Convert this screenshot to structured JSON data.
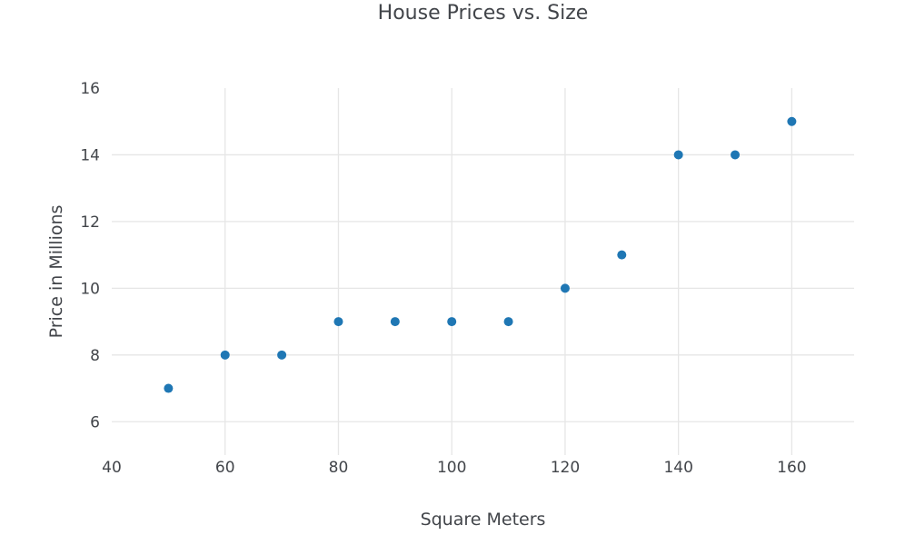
{
  "chart_data": {
    "type": "scatter",
    "title": "House Prices vs. Size",
    "xlabel": "Square Meters",
    "ylabel": "Price in Millions",
    "x": [
      50,
      60,
      70,
      80,
      90,
      100,
      110,
      120,
      130,
      140,
      150,
      160
    ],
    "y": [
      7,
      8,
      8,
      9,
      9,
      9,
      9,
      10,
      11,
      14,
      14,
      15
    ],
    "xticks": [
      40,
      60,
      80,
      100,
      120,
      140,
      160
    ],
    "yticks": [
      6,
      8,
      10,
      12,
      14,
      16
    ],
    "xlim": [
      40,
      171
    ],
    "ylim": [
      5,
      16
    ],
    "grid": true,
    "legend": false,
    "marker_color": "#1f77b4",
    "marker_radius": 5,
    "grid_color": "#e6e6e6",
    "text_color": "#42454a",
    "background_color": "#ffffff"
  }
}
